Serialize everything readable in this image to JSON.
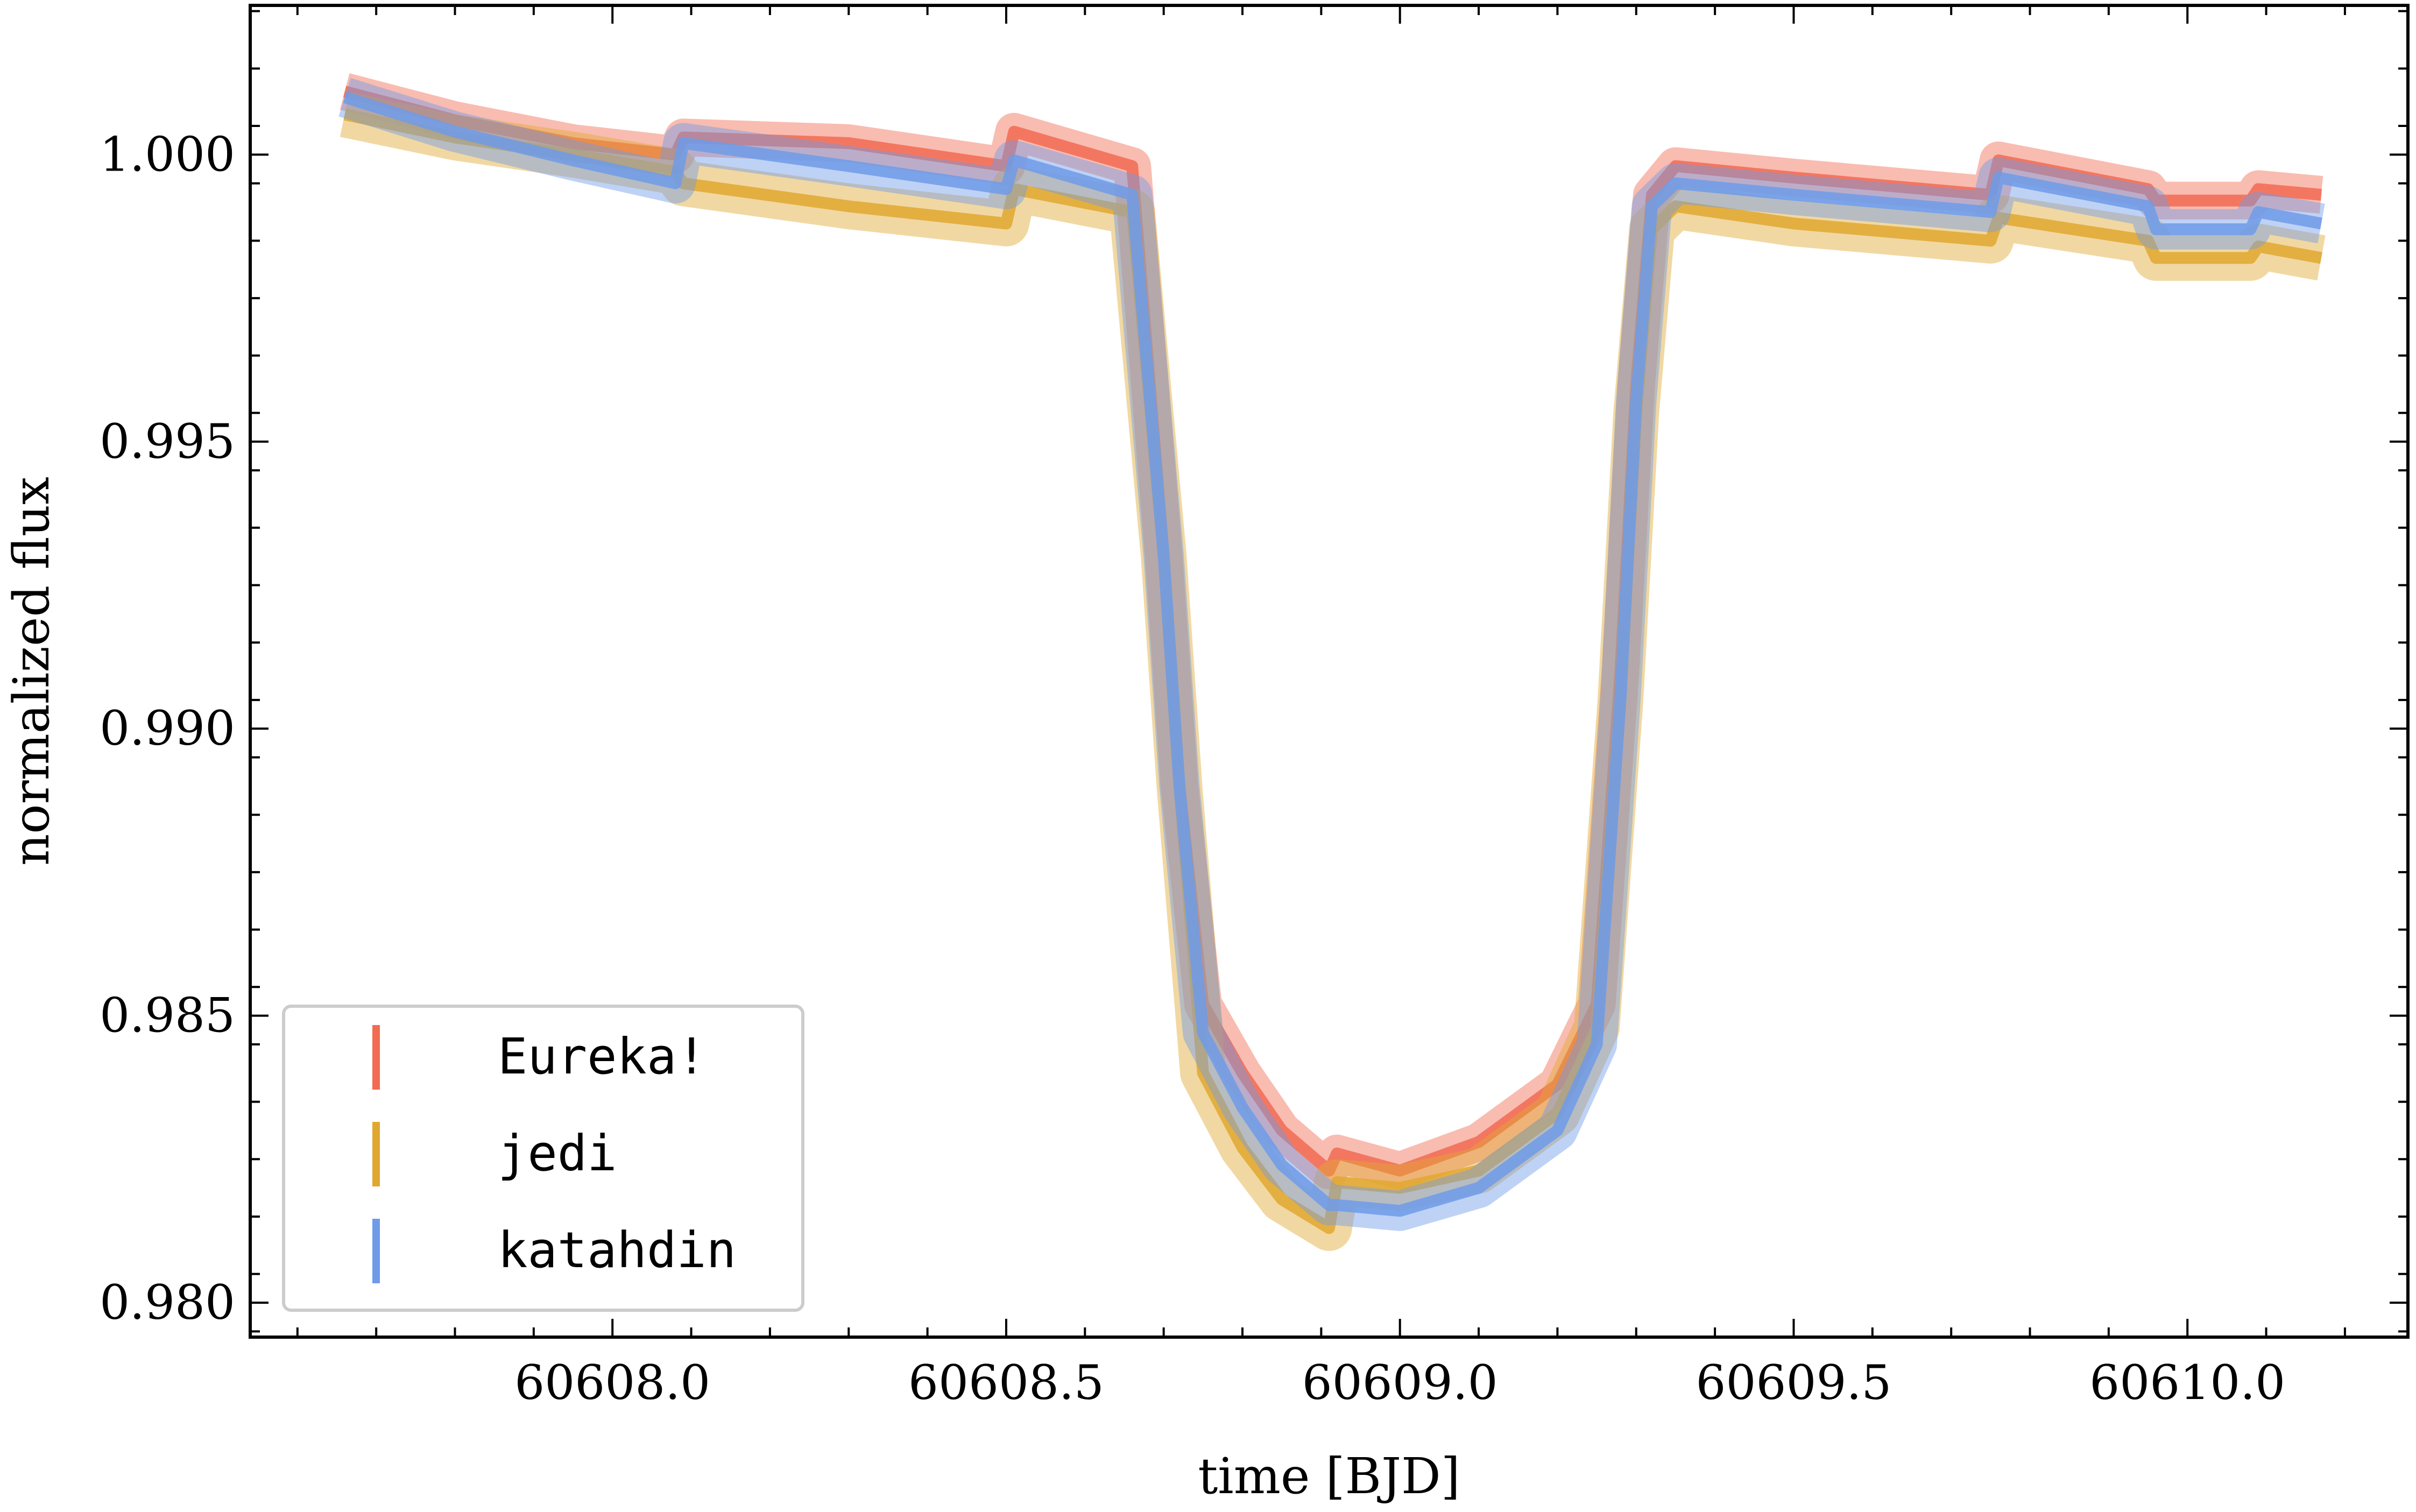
{
  "chart_data": {
    "type": "line",
    "title": "",
    "xlabel": "time [BJD]",
    "ylabel": "normalized flux",
    "xlim": [
      60607.54,
      60610.28
    ],
    "ylim": [
      0.9794,
      1.0026
    ],
    "xticks": [
      60608.0,
      60608.5,
      60609.0,
      60609.5,
      60610.0
    ],
    "xtick_labels": [
      "60608.0",
      "60608.5",
      "60609.0",
      "60609.5",
      "60610.0"
    ],
    "yticks": [
      0.98,
      0.985,
      0.99,
      0.995,
      1.0
    ],
    "ytick_labels": [
      "0.980",
      "0.985",
      "0.990",
      "0.995",
      "1.000"
    ],
    "grid": false,
    "legend_position": "lower-left",
    "series": [
      {
        "name": "Eureka!",
        "color": "#f26b52",
        "x": [
          60607.66,
          60607.8,
          60607.95,
          60608.08,
          60608.09,
          60608.3,
          60608.5,
          60608.51,
          60608.66,
          60608.7,
          60608.72,
          60608.75,
          60608.8,
          60608.85,
          60608.91,
          60608.92,
          60609.0,
          60609.1,
          60609.2,
          60609.25,
          60609.28,
          60609.3,
          60609.32,
          60609.35,
          60609.5,
          60609.75,
          60609.76,
          60609.95,
          60609.96,
          60610.08,
          60610.09,
          60610.17
        ],
        "y": [
          1.0011,
          1.0006,
          1.0002,
          1.0,
          1.0003,
          1.0002,
          0.9998,
          1.0004,
          0.9998,
          0.993,
          0.989,
          0.9852,
          0.984,
          0.983,
          0.9823,
          0.9826,
          0.9823,
          0.9828,
          0.9838,
          0.9852,
          0.991,
          0.996,
          0.9993,
          0.9998,
          0.9996,
          0.9993,
          0.9999,
          0.9994,
          0.9992,
          0.9992,
          0.9994,
          0.9993
        ]
      },
      {
        "name": "jedi",
        "color": "#e1a830",
        "x": [
          60607.66,
          60607.8,
          60607.95,
          60608.08,
          60608.09,
          60608.3,
          60608.5,
          60608.51,
          60608.66,
          60608.7,
          60608.72,
          60608.75,
          60608.8,
          60608.85,
          60608.91,
          60608.92,
          60609.0,
          60609.1,
          60609.2,
          60609.25,
          60609.28,
          60609.3,
          60609.32,
          60609.35,
          60609.5,
          60609.75,
          60609.76,
          60609.95,
          60609.96,
          60610.08,
          60610.09,
          60610.17
        ],
        "y": [
          1.0007,
          1.0003,
          1.0,
          0.9997,
          0.9995,
          0.9991,
          0.9988,
          0.9994,
          0.999,
          0.993,
          0.989,
          0.984,
          0.9827,
          0.9818,
          0.9813,
          0.9821,
          0.982,
          0.9823,
          0.9833,
          0.9848,
          0.9905,
          0.9955,
          0.9987,
          0.9991,
          0.9988,
          0.9985,
          0.9989,
          0.9985,
          0.9982,
          0.9982,
          0.9984,
          0.9982
        ]
      },
      {
        "name": "katahdin",
        "color": "#6f9be8",
        "x": [
          60607.66,
          60607.8,
          60607.95,
          60608.08,
          60608.09,
          60608.3,
          60608.5,
          60608.51,
          60608.66,
          60608.7,
          60608.72,
          60608.75,
          60608.8,
          60608.85,
          60608.91,
          60608.92,
          60609.0,
          60609.1,
          60609.2,
          60609.25,
          60609.28,
          60609.3,
          60609.32,
          60609.35,
          60609.5,
          60609.75,
          60609.76,
          60609.95,
          60609.96,
          60610.08,
          60610.09,
          60610.17
        ],
        "y": [
          1.001,
          1.0004,
          0.9999,
          0.9995,
          1.0002,
          0.9998,
          0.9994,
          0.9999,
          0.9993,
          0.993,
          0.989,
          0.9847,
          0.9834,
          0.9824,
          0.9817,
          0.9817,
          0.9816,
          0.982,
          0.983,
          0.9845,
          0.9905,
          0.9957,
          0.9991,
          0.9995,
          0.9993,
          0.999,
          0.9996,
          0.9991,
          0.9987,
          0.9987,
          0.999,
          0.9988
        ]
      }
    ]
  }
}
